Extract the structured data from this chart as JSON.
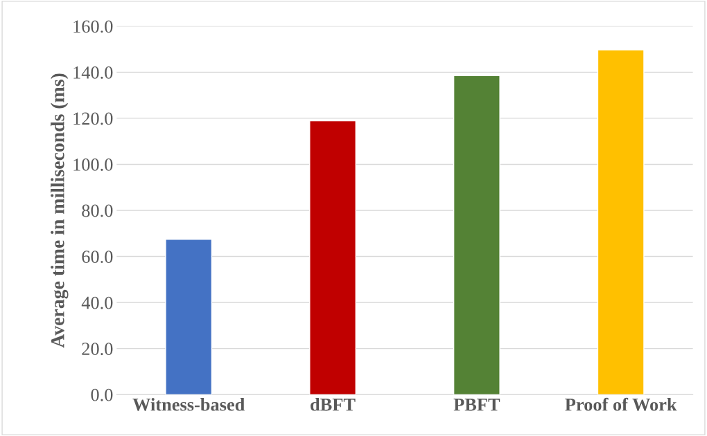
{
  "chart_data": {
    "type": "bar",
    "ylabel": "Average time in milliseconds (ms)",
    "categories": [
      "Witness-based",
      "dBFT",
      "PBFT",
      "Proof of Work"
    ],
    "values": [
      67.4,
      118.9,
      138.5,
      149.7
    ],
    "colors": [
      "#4472c4",
      "#c00000",
      "#548235",
      "#ffc000"
    ],
    "ylim": [
      0,
      160
    ],
    "yticks": [
      {
        "value": 0,
        "label": "0.0"
      },
      {
        "value": 20,
        "label": "20.0"
      },
      {
        "value": 40,
        "label": "40.0"
      },
      {
        "value": 60,
        "label": "60.0"
      },
      {
        "value": 80,
        "label": "80.0"
      },
      {
        "value": 100,
        "label": "100.0"
      },
      {
        "value": 120,
        "label": "120.0"
      },
      {
        "value": 140,
        "label": "140.0"
      },
      {
        "value": 160,
        "label": "160.0"
      }
    ],
    "grid": "y"
  }
}
